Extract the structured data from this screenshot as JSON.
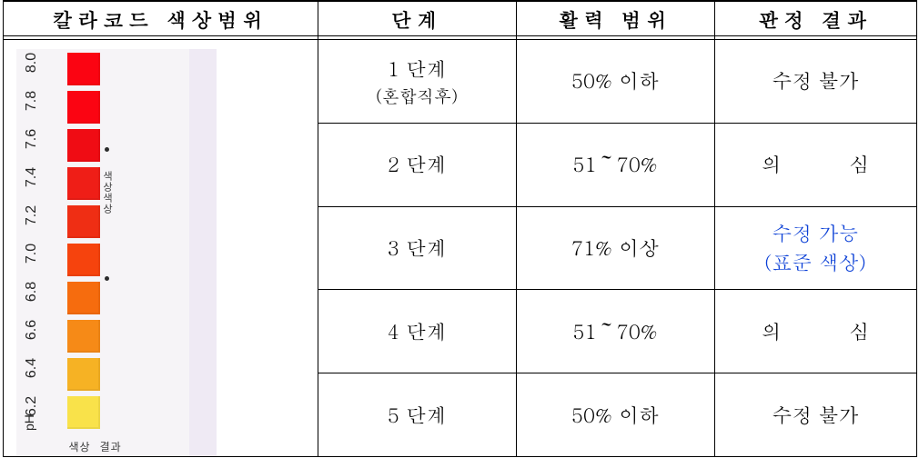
{
  "headers": {
    "code": "칼라코드 색상범위",
    "step": "단계",
    "range": "활력 범위",
    "result": "판정 결과"
  },
  "rows": [
    {
      "step_main": "1 단계",
      "step_sub": "(혼합직후)",
      "range": "50% 이하",
      "result_main": "수정 불가",
      "result_sub": "",
      "blue": false
    },
    {
      "step_main": "2 단계",
      "step_sub": "",
      "range": "51～70%",
      "result_main": "의",
      "result_sub": "심",
      "blue": false,
      "wide": true
    },
    {
      "step_main": "3 단계",
      "step_sub": "",
      "range": "71% 이상",
      "result_main": "수정 가능",
      "result_sub": "(표준 색상)",
      "blue": true
    },
    {
      "step_main": "4 단계",
      "step_sub": "",
      "range": "51～70%",
      "result_main": "의",
      "result_sub": "심",
      "blue": false,
      "wide": true
    },
    {
      "step_main": "5 단계",
      "step_sub": "",
      "range": "50% 이하",
      "result_main": "수정 불가",
      "result_sub": "",
      "blue": false
    }
  ],
  "colorCode": {
    "phLabel": "pH",
    "ticks": [
      "8.0",
      "7.8",
      "7.6",
      "7.4",
      "7.2",
      "7.0",
      "6.8",
      "6.6",
      "6.4",
      "6.2"
    ],
    "tickTop0": 8,
    "tickSpacing": 42,
    "sideword": "색상색상",
    "swatches": [
      {
        "color": "#fb0412"
      },
      {
        "color": "#fb0412"
      },
      {
        "color": "#f00c14"
      },
      {
        "color": "#ef1e17"
      },
      {
        "color": "#ef2e14"
      },
      {
        "color": "#f6430d"
      },
      {
        "color": "#f66c0e"
      },
      {
        "color": "#f68a17"
      },
      {
        "color": "#f6b224"
      },
      {
        "color": "#f9e24a"
      }
    ],
    "swatchTop0": 4,
    "swatchSpacing": 42,
    "footLabels": [
      "색상",
      "결과"
    ]
  }
}
